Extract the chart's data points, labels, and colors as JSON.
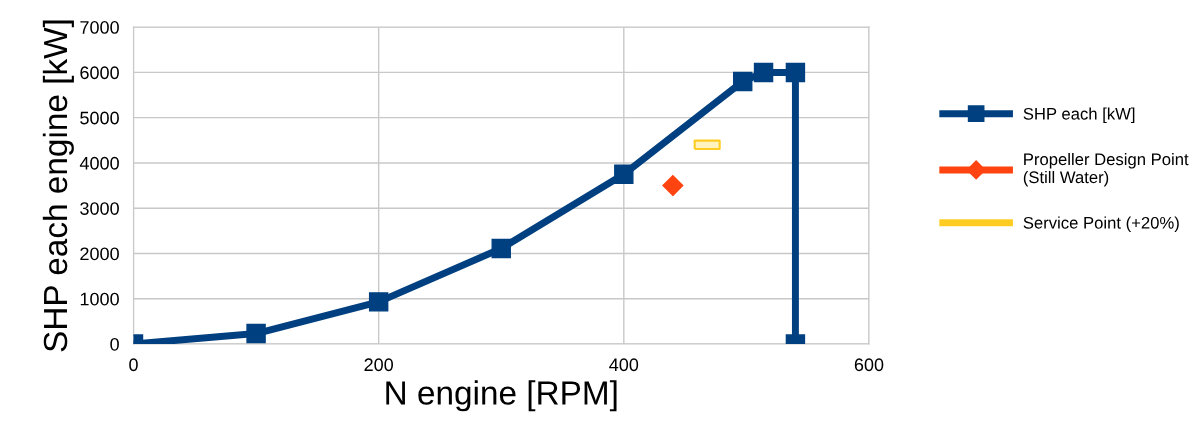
{
  "chart_data": {
    "type": "line",
    "xlabel": "N engine [RPM]",
    "ylabel": "SHP each engine [kW]",
    "xlim": [
      0,
      600
    ],
    "xticks": [
      0,
      200,
      400,
      600
    ],
    "ylim": [
      0,
      7000
    ],
    "yticks": [
      0,
      1000,
      2000,
      3000,
      4000,
      5000,
      6000,
      7000
    ],
    "grid": true,
    "legend": "right",
    "series": [
      {
        "name": "SHP each [kW]",
        "color": "#004080",
        "marker": "square",
        "x": [
          0,
          100,
          200,
          300,
          400,
          497,
          514,
          540,
          540
        ],
        "values": [
          0,
          230,
          930,
          2110,
          3750,
          5800,
          6000,
          6000,
          0
        ]
      },
      {
        "name": "Propeller Design Point\n(Still Water)",
        "color": "#ff4411",
        "type": "scatter",
        "marker": "diamond",
        "x": [
          440
        ],
        "values": [
          3500
        ]
      },
      {
        "name": "Service Point (+20%)",
        "color": "#ffcc22",
        "type": "scatter",
        "marker": "square",
        "x": [
          468
        ],
        "values": [
          4400
        ]
      }
    ]
  }
}
